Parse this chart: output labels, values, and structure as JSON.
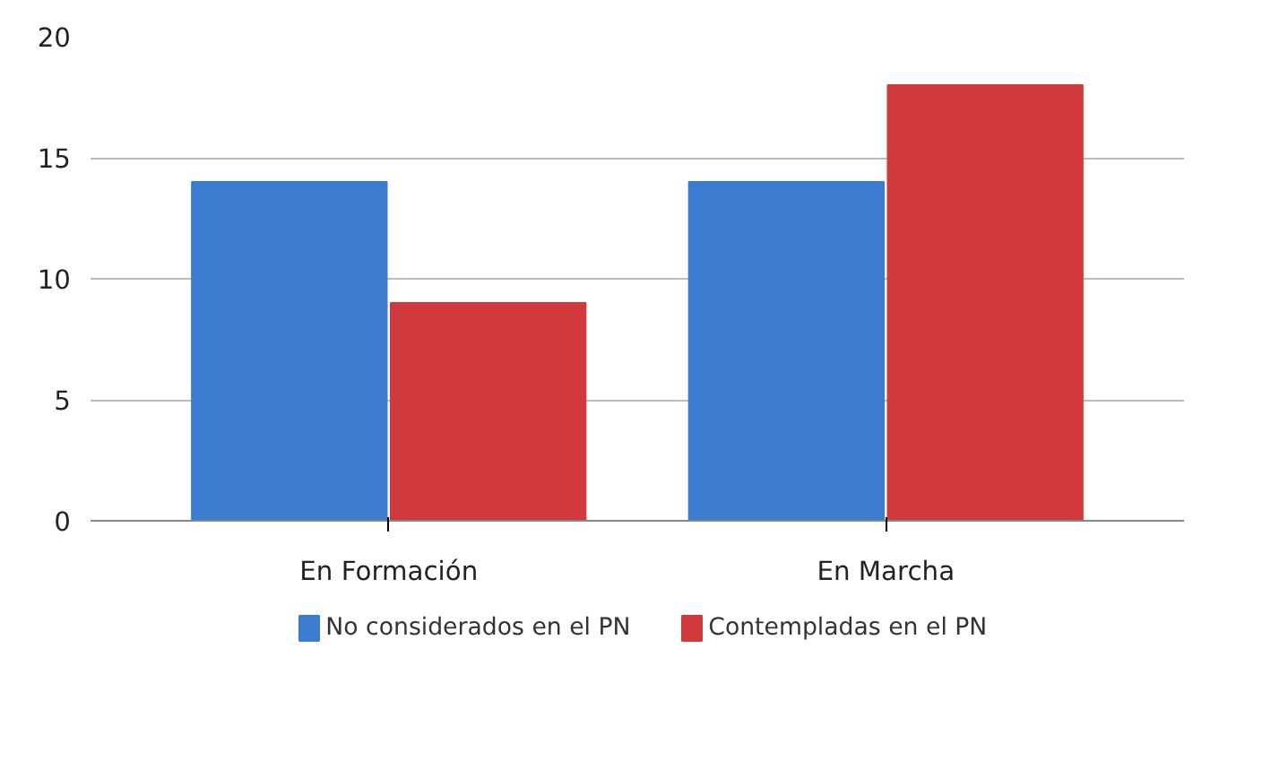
{
  "chart_data": {
    "type": "bar",
    "categories": [
      "En Formación",
      "En Marcha"
    ],
    "series": [
      {
        "name": "No considerados en el PN",
        "color": "#3b7bd0",
        "values": [
          14,
          14
        ]
      },
      {
        "name": "Contempladas en el PN",
        "color": "#d2393c",
        "values": [
          9,
          18
        ]
      }
    ],
    "ylim": [
      0,
      20
    ],
    "yticks": [
      0,
      5,
      10,
      15,
      20
    ],
    "grid": "y",
    "legend": "bottom"
  }
}
